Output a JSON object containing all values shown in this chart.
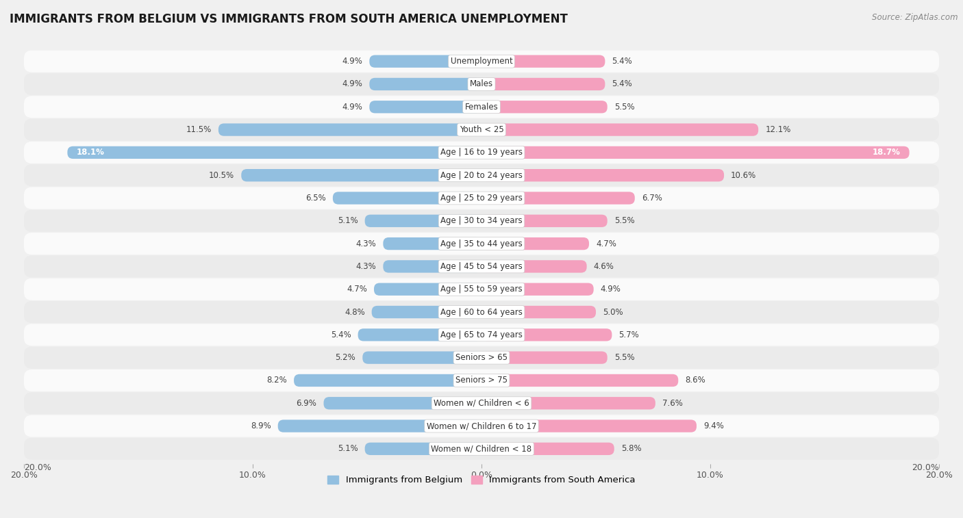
{
  "title": "IMMIGRANTS FROM BELGIUM VS IMMIGRANTS FROM SOUTH AMERICA UNEMPLOYMENT",
  "source": "Source: ZipAtlas.com",
  "categories": [
    "Unemployment",
    "Males",
    "Females",
    "Youth < 25",
    "Age | 16 to 19 years",
    "Age | 20 to 24 years",
    "Age | 25 to 29 years",
    "Age | 30 to 34 years",
    "Age | 35 to 44 years",
    "Age | 45 to 54 years",
    "Age | 55 to 59 years",
    "Age | 60 to 64 years",
    "Age | 65 to 74 years",
    "Seniors > 65",
    "Seniors > 75",
    "Women w/ Children < 6",
    "Women w/ Children 6 to 17",
    "Women w/ Children < 18"
  ],
  "belgium_values": [
    4.9,
    4.9,
    4.9,
    11.5,
    18.1,
    10.5,
    6.5,
    5.1,
    4.3,
    4.3,
    4.7,
    4.8,
    5.4,
    5.2,
    8.2,
    6.9,
    8.9,
    5.1
  ],
  "south_america_values": [
    5.4,
    5.4,
    5.5,
    12.1,
    18.7,
    10.6,
    6.7,
    5.5,
    4.7,
    4.6,
    4.9,
    5.0,
    5.7,
    5.5,
    8.6,
    7.6,
    9.4,
    5.8
  ],
  "belgium_color": "#92bfe0",
  "south_america_color": "#f4a0be",
  "belgium_label": "Immigrants from Belgium",
  "south_america_label": "Immigrants from South America",
  "axis_max": 20.0,
  "bg_color": "#f0f0f0",
  "row_color_light": "#fafafa",
  "row_color_dark": "#ebebeb",
  "title_fontsize": 12,
  "source_fontsize": 8.5,
  "label_fontsize": 8.5,
  "value_fontsize": 8.5,
  "tick_fontsize": 9
}
